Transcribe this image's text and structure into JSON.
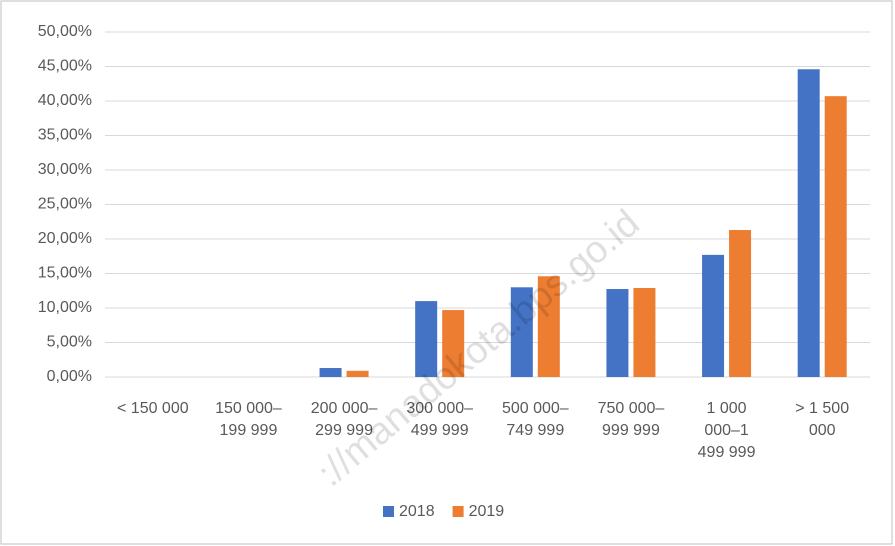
{
  "chart_data": {
    "type": "bar",
    "categories": [
      "< 150 000",
      "150 000–\n199 999",
      "200 000–\n299 999",
      "300 000–\n499 999",
      "500 000–\n749 999",
      "750 000–\n999 999",
      "1 000\n000–1\n499 999",
      "> 1 500\n000"
    ],
    "series": [
      {
        "name": "2018",
        "color": "#4472c4",
        "values": [
          0,
          0,
          1.3,
          11.0,
          13.0,
          12.75,
          17.7,
          44.6
        ]
      },
      {
        "name": "2019",
        "color": "#ed7d31",
        "values": [
          0,
          0,
          0.9,
          9.7,
          14.6,
          12.9,
          21.3,
          40.7
        ]
      }
    ],
    "ylim": [
      0,
      50
    ],
    "yticks": [
      {
        "value": 0,
        "label": "0,00%"
      },
      {
        "value": 5,
        "label": "5,00%"
      },
      {
        "value": 10,
        "label": "10,00%"
      },
      {
        "value": 15,
        "label": "15,00%"
      },
      {
        "value": 20,
        "label": "20,00%"
      },
      {
        "value": 25,
        "label": "25,00%"
      },
      {
        "value": 30,
        "label": "30,00%"
      },
      {
        "value": 35,
        "label": "35,00%"
      },
      {
        "value": 40,
        "label": "40,00%"
      },
      {
        "value": 45,
        "label": "45,00%"
      },
      {
        "value": 50,
        "label": "50,00%"
      }
    ],
    "grid": true,
    "legend": "bottom",
    "watermark": "://manadokota.bps.go.id"
  }
}
